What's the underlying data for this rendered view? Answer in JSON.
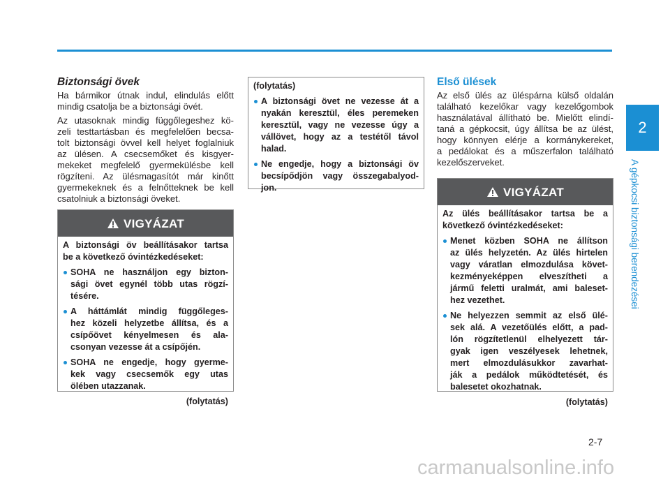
{
  "left": {
    "title": "Biztonsági övek",
    "paragraphs": [
      [
        "Ha bármikor útnak indul, elindulás előtt",
        "mindig csatolja be a biztonsági övét."
      ],
      [
        "Az utasoknak mindig függőlegeshez kö-",
        "zeli testtartásban és megfelelően becsa-",
        "tolt biztonsági övvel kell helyet foglalniuk",
        "az ülésen. A csecsemőket és kisgyer-",
        "mekeket megfelelő gyermekülésbe kell",
        "rögzíteni. Az ülésmagasítót már kinőtt",
        "gyermekeknek és a felnőtteknek be kell",
        "csatolniuk a biztonsági öveket."
      ]
    ],
    "warning": {
      "heading": "VIGYÁZAT",
      "intro": [
        "A biztonsági öv beállításakor tartsa",
        "be a következő óvintézkedéseket:"
      ],
      "bullets": [
        [
          "SOHA ne használjon egy bizton-",
          "sági övet egynél több utas rögzí-",
          "tésére."
        ],
        [
          "A háttámlát mindig függőleges-",
          "hez közeli helyzetbe állítsa, és a",
          "csípőövet kényelmesen és ala-",
          "csonyan vezesse át a csípőjén."
        ],
        [
          "SOHA ne engedje, hogy gyerme-",
          "kek vagy csecsemők egy utas",
          "ölében utazzanak."
        ]
      ],
      "continued": "(folytatás)"
    }
  },
  "middle": {
    "continued_from": "(folytatás)",
    "bullets": [
      [
        "A biztonsági övet ne vezesse át a",
        "nyakán keresztül, éles peremeken",
        "keresztül, vagy ne vezesse úgy a",
        "vállövet, hogy az a testétől távol",
        "halad."
      ],
      [
        "Ne engedje, hogy a biztonsági öv",
        "becsípődjön vagy összegabalyod-",
        "jon."
      ]
    ]
  },
  "right": {
    "title": "Első ülések",
    "paragraphs": [
      [
        "Az első ülés az üléspárna külső oldalán",
        "található kezelőkar vagy kezelőgombok",
        "használatával állítható be. Mielőtt elindí-",
        "taná a gépkocsit, úgy állítsa be az ülést,",
        "hogy könnyen elérje a kormánykereket,",
        "a pedálokat és a műszerfalon található",
        "kezelőszerveket."
      ]
    ],
    "warning": {
      "heading": "VIGYÁZAT",
      "intro": [
        "Az ülés beállításakor tartsa be a",
        "következő óvintézkedéseket:"
      ],
      "bullets": [
        [
          "Menet közben SOHA ne állítson",
          "az ülés helyzetén. Az ülés hirtelen",
          "vagy váratlan elmozdulása követ-",
          "kezményeképpen elveszítheti a",
          "jármű feletti uralmát, ami baleset-",
          "hez vezethet."
        ],
        [
          "Ne helyezzen semmit az első ülé-",
          "sek alá. A vezetőülés előtt, a pad-",
          "lón rögzítetlenül elhelyezett tár-",
          "gyak igen veszélyesek lehetnek,",
          "mert elmozdulásukkor zavarhat-",
          "ják a pedálok működtetését, és",
          "balesetet okozhatnak."
        ]
      ],
      "continued": "(folytatás)"
    }
  },
  "sidebar": {
    "chapter": "2",
    "label": "A gépkocsi biztonsági berendezései"
  },
  "page_number": "2-7",
  "watermark": "carmanualsonline.info"
}
